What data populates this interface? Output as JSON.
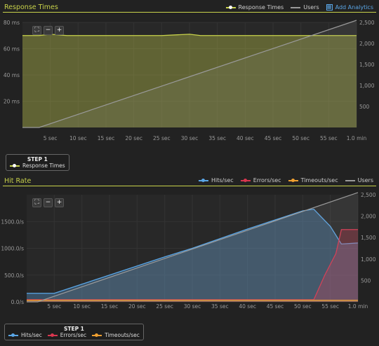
{
  "rt_panel": {
    "title": "Response Times",
    "legend": [
      {
        "label": "Response Times",
        "color": "#c8d24a"
      },
      {
        "label": "Users",
        "color": "#9a9a9a"
      }
    ],
    "analytics_label": "Add Analytics",
    "step": {
      "label": "STEP 1",
      "items": [
        {
          "label": "Response Times",
          "color": "#c8d24a"
        }
      ]
    }
  },
  "hr_panel": {
    "title": "Hit Rate",
    "legend": [
      {
        "label": "Hits/sec",
        "color": "#5aa6e6"
      },
      {
        "label": "Errors/sec",
        "color": "#d9364f"
      },
      {
        "label": "Timeouts/sec",
        "color": "#f0a030"
      },
      {
        "label": "Users",
        "color": "#9a9a9a"
      }
    ],
    "step": {
      "label": "STEP 1",
      "items": [
        {
          "label": "Hits/sec",
          "color": "#5aa6e6"
        },
        {
          "label": "Errors/sec",
          "color": "#d9364f"
        },
        {
          "label": "Timeouts/sec",
          "color": "#f0a030"
        }
      ]
    }
  },
  "chart_data": [
    {
      "type": "area",
      "title": "Response Times",
      "x": [
        0,
        3,
        5,
        8,
        10,
        15,
        20,
        25,
        30,
        32,
        35,
        38,
        40,
        45,
        50,
        55,
        60
      ],
      "x_tick_labels": [
        "5 sec",
        "10 sec",
        "15 sec",
        "20 sec",
        "25 sec",
        "30 sec",
        "35 sec",
        "40 sec",
        "45 sec",
        "50 sec",
        "55 sec",
        "1.0 min"
      ],
      "xlim": [
        0,
        60
      ],
      "y_left_ticks": [
        "20 ms",
        "40 ms",
        "60 ms",
        "80 ms"
      ],
      "ylim_left": [
        0,
        80
      ],
      "y_right_ticks": [
        "500",
        "1,000",
        "1,500",
        "2,000",
        "2,500"
      ],
      "ylim_right": [
        0,
        2500
      ],
      "series": [
        {
          "name": "Response Times",
          "axis": "left",
          "color": "#c8d24a",
          "x": [
            0,
            3,
            5,
            8,
            10,
            15,
            20,
            25,
            30,
            32,
            35,
            38,
            40,
            45,
            50,
            55,
            60
          ],
          "values": [
            70,
            70,
            71,
            70,
            70,
            70,
            70,
            70,
            71,
            70,
            70,
            70,
            70,
            70,
            70,
            70,
            70
          ]
        },
        {
          "name": "Users",
          "axis": "right",
          "color": "#9a9a9a",
          "x": [
            0,
            3,
            60
          ],
          "values": [
            0,
            0,
            2550
          ]
        }
      ]
    },
    {
      "type": "area",
      "title": "Hit Rate",
      "x_tick_labels": [
        "5 sec",
        "10 sec",
        "15 sec",
        "20 sec",
        "25 sec",
        "30 sec",
        "35 sec",
        "40 sec",
        "45 sec",
        "50 sec",
        "55 sec",
        "1.0 min"
      ],
      "xlim": [
        0,
        60
      ],
      "y_left_ticks": [
        "0.0/s",
        "500.0/s",
        "1000.0/s",
        "1500.0/s"
      ],
      "ylim_left": [
        0,
        2000
      ],
      "y_right_ticks": [
        "500",
        "1,000",
        "1,500",
        "2,000",
        "2,500"
      ],
      "ylim_right": [
        0,
        2500
      ],
      "series": [
        {
          "name": "Hits/sec",
          "axis": "left",
          "color": "#5aa6e6",
          "x": [
            0,
            5,
            10,
            15,
            20,
            25,
            30,
            35,
            40,
            45,
            50,
            52,
            55,
            57,
            60
          ],
          "values": [
            160,
            160,
            330,
            500,
            670,
            840,
            1000,
            1180,
            1360,
            1530,
            1700,
            1730,
            1410,
            1080,
            1100
          ]
        },
        {
          "name": "Errors/sec",
          "axis": "left",
          "color": "#d9364f",
          "x": [
            0,
            52,
            54,
            56,
            57,
            60
          ],
          "values": [
            40,
            40,
            500,
            900,
            1350,
            1350
          ]
        },
        {
          "name": "Timeouts/sec",
          "axis": "left",
          "color": "#f0a030",
          "x": [
            0,
            60
          ],
          "values": [
            30,
            30
          ]
        },
        {
          "name": "Users",
          "axis": "right",
          "color": "#9a9a9a",
          "x": [
            0,
            2,
            60
          ],
          "values": [
            0,
            0,
            2550
          ]
        }
      ]
    }
  ]
}
